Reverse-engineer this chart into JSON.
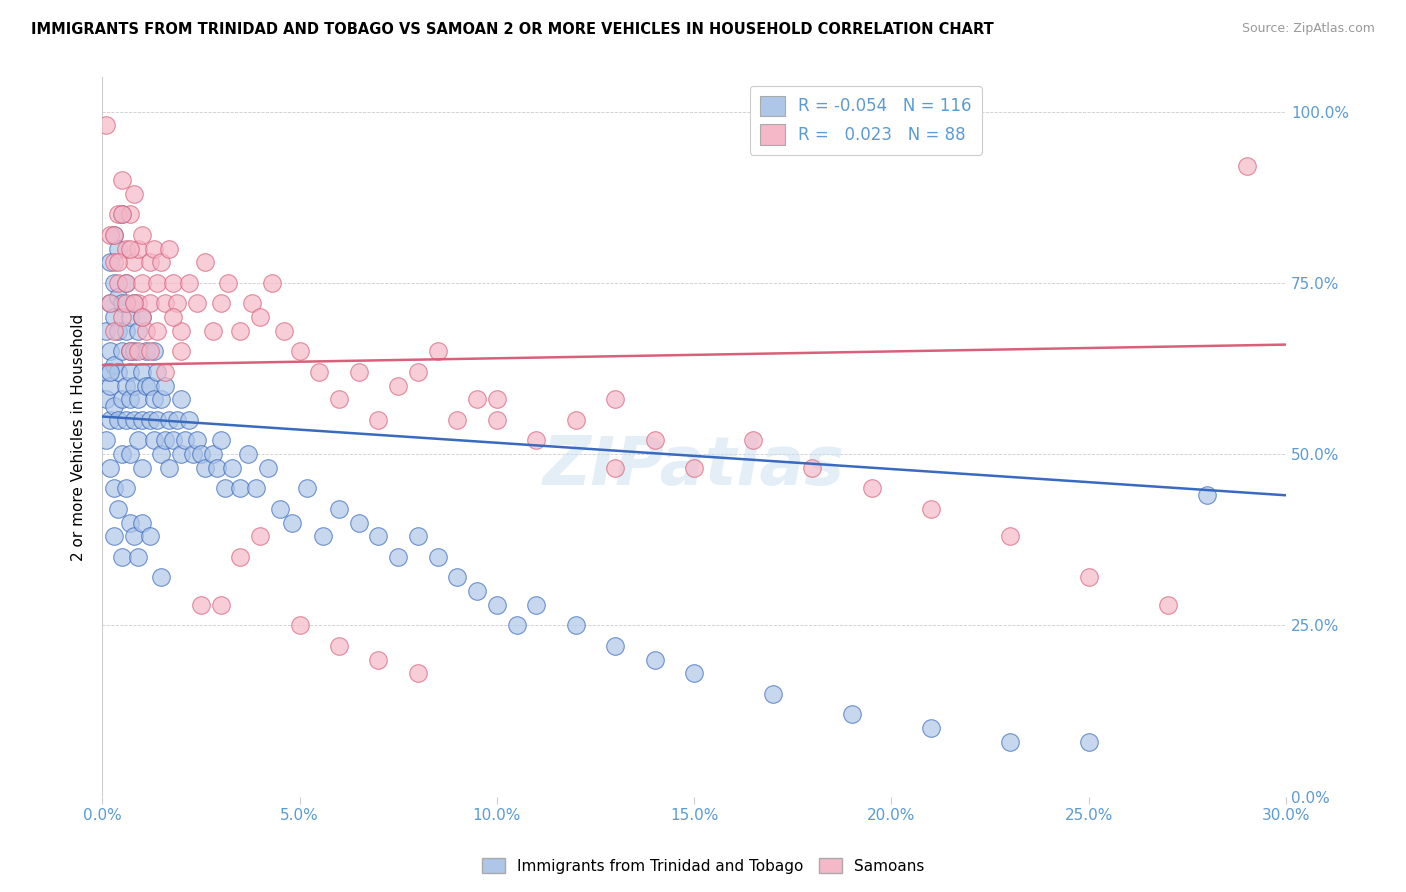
{
  "title": "IMMIGRANTS FROM TRINIDAD AND TOBAGO VS SAMOAN 2 OR MORE VEHICLES IN HOUSEHOLD CORRELATION CHART",
  "source": "Source: ZipAtlas.com",
  "xlabel_ticks": [
    "0.0%",
    "5.0%",
    "10.0%",
    "15.0%",
    "20.0%",
    "25.0%",
    "30.0%"
  ],
  "ylabel_ticks": [
    "0.0%",
    "25.0%",
    "50.0%",
    "75.0%",
    "100.0%"
  ],
  "xlim": [
    0.0,
    0.3
  ],
  "ylim": [
    0.0,
    1.05
  ],
  "ylabel": "2 or more Vehicles in Household",
  "legend_label1": "Immigrants from Trinidad and Tobago",
  "legend_label2": "Samoans",
  "R1": "-0.054",
  "N1": "116",
  "R2": "0.023",
  "N2": "88",
  "color_blue": "#aec6e8",
  "color_pink": "#f4b8c8",
  "line_blue": "#3a6abf",
  "line_pink": "#d9607a",
  "watermark": "ZIPatlas",
  "blue_line_x": [
    0.0,
    0.3
  ],
  "blue_line_y": [
    0.555,
    0.44
  ],
  "pink_line_x": [
    0.0,
    0.3
  ],
  "pink_line_y": [
    0.63,
    0.66
  ],
  "blue_x": [
    0.001,
    0.001,
    0.001,
    0.001,
    0.002,
    0.002,
    0.002,
    0.002,
    0.002,
    0.002,
    0.003,
    0.003,
    0.003,
    0.003,
    0.003,
    0.003,
    0.004,
    0.004,
    0.004,
    0.004,
    0.004,
    0.005,
    0.005,
    0.005,
    0.005,
    0.005,
    0.006,
    0.006,
    0.006,
    0.006,
    0.007,
    0.007,
    0.007,
    0.007,
    0.007,
    0.008,
    0.008,
    0.008,
    0.008,
    0.009,
    0.009,
    0.009,
    0.01,
    0.01,
    0.01,
    0.01,
    0.011,
    0.011,
    0.012,
    0.012,
    0.013,
    0.013,
    0.013,
    0.014,
    0.014,
    0.015,
    0.015,
    0.016,
    0.016,
    0.017,
    0.017,
    0.018,
    0.019,
    0.02,
    0.02,
    0.021,
    0.022,
    0.023,
    0.024,
    0.025,
    0.026,
    0.028,
    0.029,
    0.03,
    0.031,
    0.033,
    0.035,
    0.037,
    0.039,
    0.042,
    0.045,
    0.048,
    0.052,
    0.056,
    0.06,
    0.065,
    0.07,
    0.075,
    0.08,
    0.085,
    0.09,
    0.095,
    0.1,
    0.105,
    0.11,
    0.12,
    0.13,
    0.14,
    0.15,
    0.17,
    0.19,
    0.21,
    0.23,
    0.25,
    0.002,
    0.003,
    0.004,
    0.005,
    0.006,
    0.007,
    0.008,
    0.009,
    0.01,
    0.012,
    0.015,
    0.28
  ],
  "blue_y": [
    0.62,
    0.68,
    0.58,
    0.52,
    0.65,
    0.72,
    0.6,
    0.55,
    0.78,
    0.48,
    0.7,
    0.63,
    0.57,
    0.75,
    0.82,
    0.45,
    0.68,
    0.62,
    0.73,
    0.55,
    0.8,
    0.65,
    0.58,
    0.72,
    0.5,
    0.85,
    0.6,
    0.68,
    0.55,
    0.75,
    0.62,
    0.7,
    0.58,
    0.65,
    0.5,
    0.72,
    0.6,
    0.55,
    0.65,
    0.68,
    0.58,
    0.52,
    0.62,
    0.55,
    0.7,
    0.48,
    0.6,
    0.65,
    0.55,
    0.6,
    0.52,
    0.65,
    0.58,
    0.55,
    0.62,
    0.5,
    0.58,
    0.52,
    0.6,
    0.48,
    0.55,
    0.52,
    0.55,
    0.5,
    0.58,
    0.52,
    0.55,
    0.5,
    0.52,
    0.5,
    0.48,
    0.5,
    0.48,
    0.52,
    0.45,
    0.48,
    0.45,
    0.5,
    0.45,
    0.48,
    0.42,
    0.4,
    0.45,
    0.38,
    0.42,
    0.4,
    0.38,
    0.35,
    0.38,
    0.35,
    0.32,
    0.3,
    0.28,
    0.25,
    0.28,
    0.25,
    0.22,
    0.2,
    0.18,
    0.15,
    0.12,
    0.1,
    0.08,
    0.08,
    0.62,
    0.38,
    0.42,
    0.35,
    0.45,
    0.4,
    0.38,
    0.35,
    0.4,
    0.38,
    0.32,
    0.44
  ],
  "pink_x": [
    0.001,
    0.002,
    0.002,
    0.003,
    0.003,
    0.004,
    0.004,
    0.005,
    0.005,
    0.006,
    0.006,
    0.007,
    0.007,
    0.008,
    0.008,
    0.009,
    0.009,
    0.01,
    0.01,
    0.011,
    0.012,
    0.012,
    0.013,
    0.014,
    0.015,
    0.016,
    0.017,
    0.018,
    0.019,
    0.02,
    0.022,
    0.024,
    0.026,
    0.028,
    0.03,
    0.032,
    0.035,
    0.038,
    0.04,
    0.043,
    0.046,
    0.05,
    0.055,
    0.06,
    0.065,
    0.07,
    0.075,
    0.08,
    0.085,
    0.09,
    0.095,
    0.1,
    0.11,
    0.12,
    0.13,
    0.14,
    0.15,
    0.165,
    0.18,
    0.195,
    0.21,
    0.23,
    0.25,
    0.27,
    0.003,
    0.004,
    0.005,
    0.006,
    0.007,
    0.008,
    0.009,
    0.01,
    0.012,
    0.014,
    0.016,
    0.018,
    0.02,
    0.025,
    0.03,
    0.035,
    0.04,
    0.05,
    0.06,
    0.07,
    0.08,
    0.1,
    0.13,
    0.29
  ],
  "pink_y": [
    0.98,
    0.72,
    0.82,
    0.78,
    0.68,
    0.85,
    0.75,
    0.9,
    0.7,
    0.8,
    0.75,
    0.85,
    0.65,
    0.78,
    0.88,
    0.72,
    0.8,
    0.75,
    0.82,
    0.68,
    0.78,
    0.72,
    0.8,
    0.75,
    0.78,
    0.72,
    0.8,
    0.75,
    0.72,
    0.68,
    0.75,
    0.72,
    0.78,
    0.68,
    0.72,
    0.75,
    0.68,
    0.72,
    0.7,
    0.75,
    0.68,
    0.65,
    0.62,
    0.58,
    0.62,
    0.55,
    0.6,
    0.62,
    0.65,
    0.55,
    0.58,
    0.58,
    0.52,
    0.55,
    0.58,
    0.52,
    0.48,
    0.52,
    0.48,
    0.45,
    0.42,
    0.38,
    0.32,
    0.28,
    0.82,
    0.78,
    0.85,
    0.72,
    0.8,
    0.72,
    0.65,
    0.7,
    0.65,
    0.68,
    0.62,
    0.7,
    0.65,
    0.28,
    0.28,
    0.35,
    0.38,
    0.25,
    0.22,
    0.2,
    0.18,
    0.55,
    0.48,
    0.92
  ]
}
